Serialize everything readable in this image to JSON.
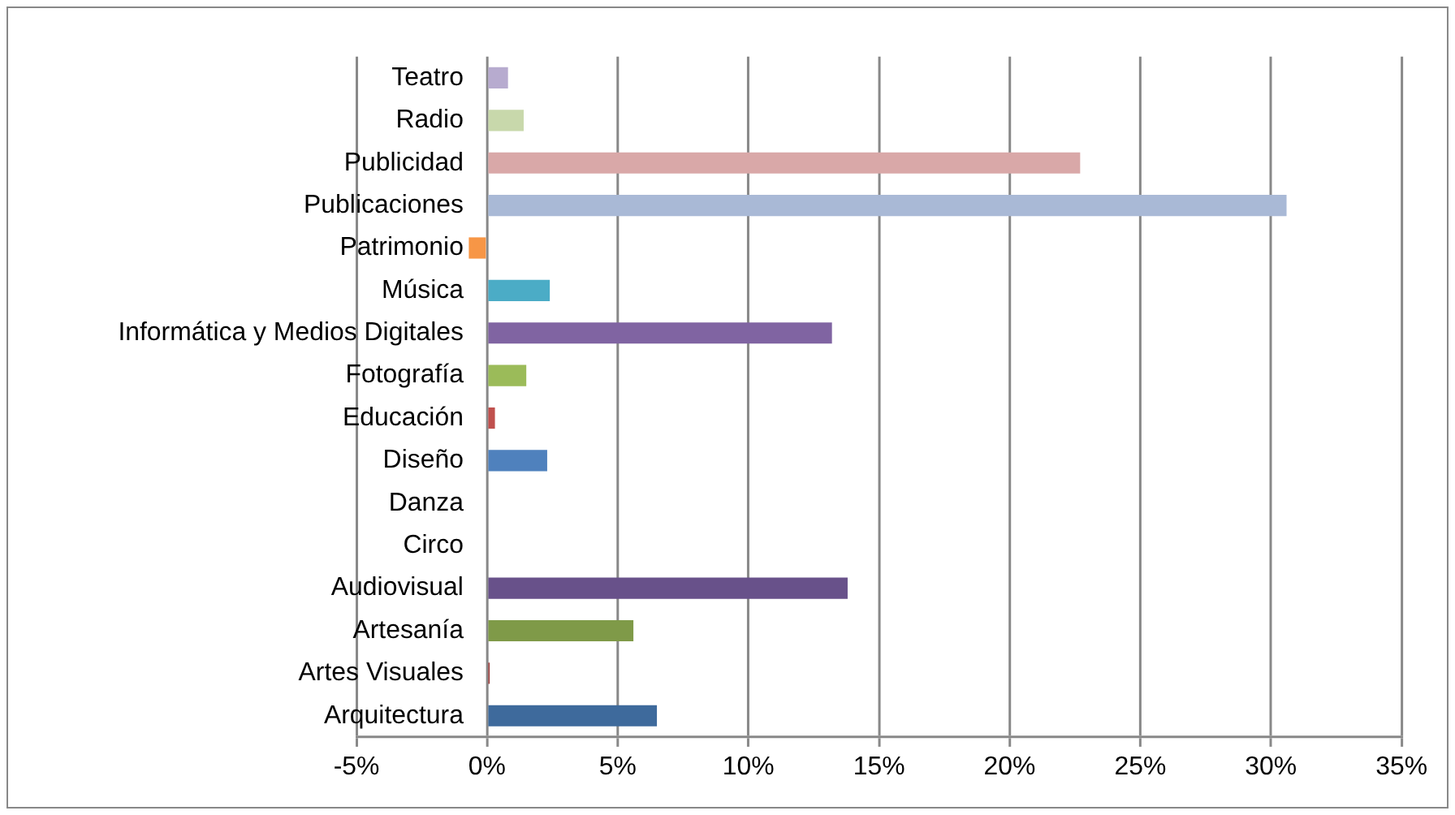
{
  "chart_data": {
    "type": "bar",
    "orientation": "horizontal",
    "categories": [
      "Teatro",
      "Radio",
      "Publicidad",
      "Publicaciones",
      "Patrimonio",
      "Música",
      "Informática y Medios Digitales",
      "Fotografía",
      "Educación",
      "Diseño",
      "Danza",
      "Circo",
      "Audiovisual",
      "Artesanía",
      "Artes Visuales",
      "Arquitectura"
    ],
    "values": [
      0.8,
      1.4,
      22.7,
      30.6,
      -0.7,
      2.4,
      13.2,
      1.5,
      0.3,
      2.3,
      0,
      0,
      13.8,
      5.6,
      0.1,
      6.5
    ],
    "colors": [
      "#b7abcf",
      "#c8d8ab",
      "#d9a8a8",
      "#a9b9d6",
      "#f79646",
      "#4bacc6",
      "#8064a2",
      "#9bbb59",
      "#c0504d",
      "#4f81bd",
      "#4f81bd",
      "#4f81bd",
      "#68518a",
      "#7f9a48",
      "#9c3f3d",
      "#3e6a9c"
    ],
    "xlim": [
      -5,
      35
    ],
    "xticks": [
      {
        "value": -5,
        "label": "-5%"
      },
      {
        "value": 0,
        "label": "0%"
      },
      {
        "value": 5,
        "label": "5%"
      },
      {
        "value": 10,
        "label": "10%"
      },
      {
        "value": 15,
        "label": "15%"
      },
      {
        "value": 20,
        "label": "20%"
      },
      {
        "value": 25,
        "label": "25%"
      },
      {
        "value": 30,
        "label": "30%"
      },
      {
        "value": 35,
        "label": "35%"
      }
    ],
    "grid": "x",
    "legend": false
  }
}
